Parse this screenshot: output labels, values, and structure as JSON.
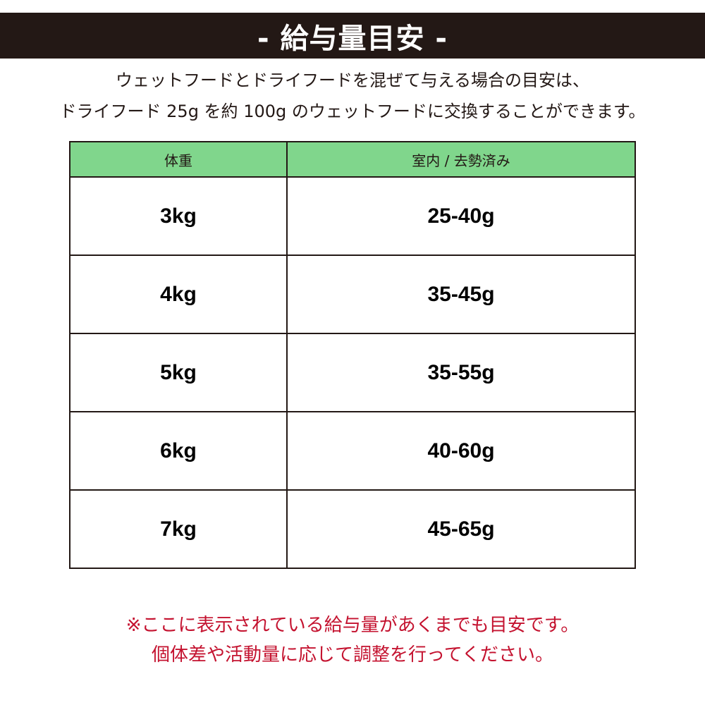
{
  "title": "- 給与量目安 -",
  "intro": [
    "ウェットフードとドライフードを混ぜて与える場合の目安は、",
    "ドライフード 25g を約 100g のウェットフードに交換することができます。"
  ],
  "table": {
    "headers": [
      "体重",
      "室内 / 去勢済み"
    ],
    "rows": [
      [
        "3kg",
        "25-40g"
      ],
      [
        "4kg",
        "35-45g"
      ],
      [
        "5kg",
        "35-55g"
      ],
      [
        "6kg",
        "40-60g"
      ],
      [
        "7kg",
        "45-65g"
      ]
    ]
  },
  "note": [
    "※ここに表示されている給与量があくまでも目安です。",
    "個体差や活動量に応じて調整を行ってください。"
  ],
  "colors": {
    "banner": "#231815",
    "header_row": "#80d68c",
    "note": "#c4122f"
  }
}
